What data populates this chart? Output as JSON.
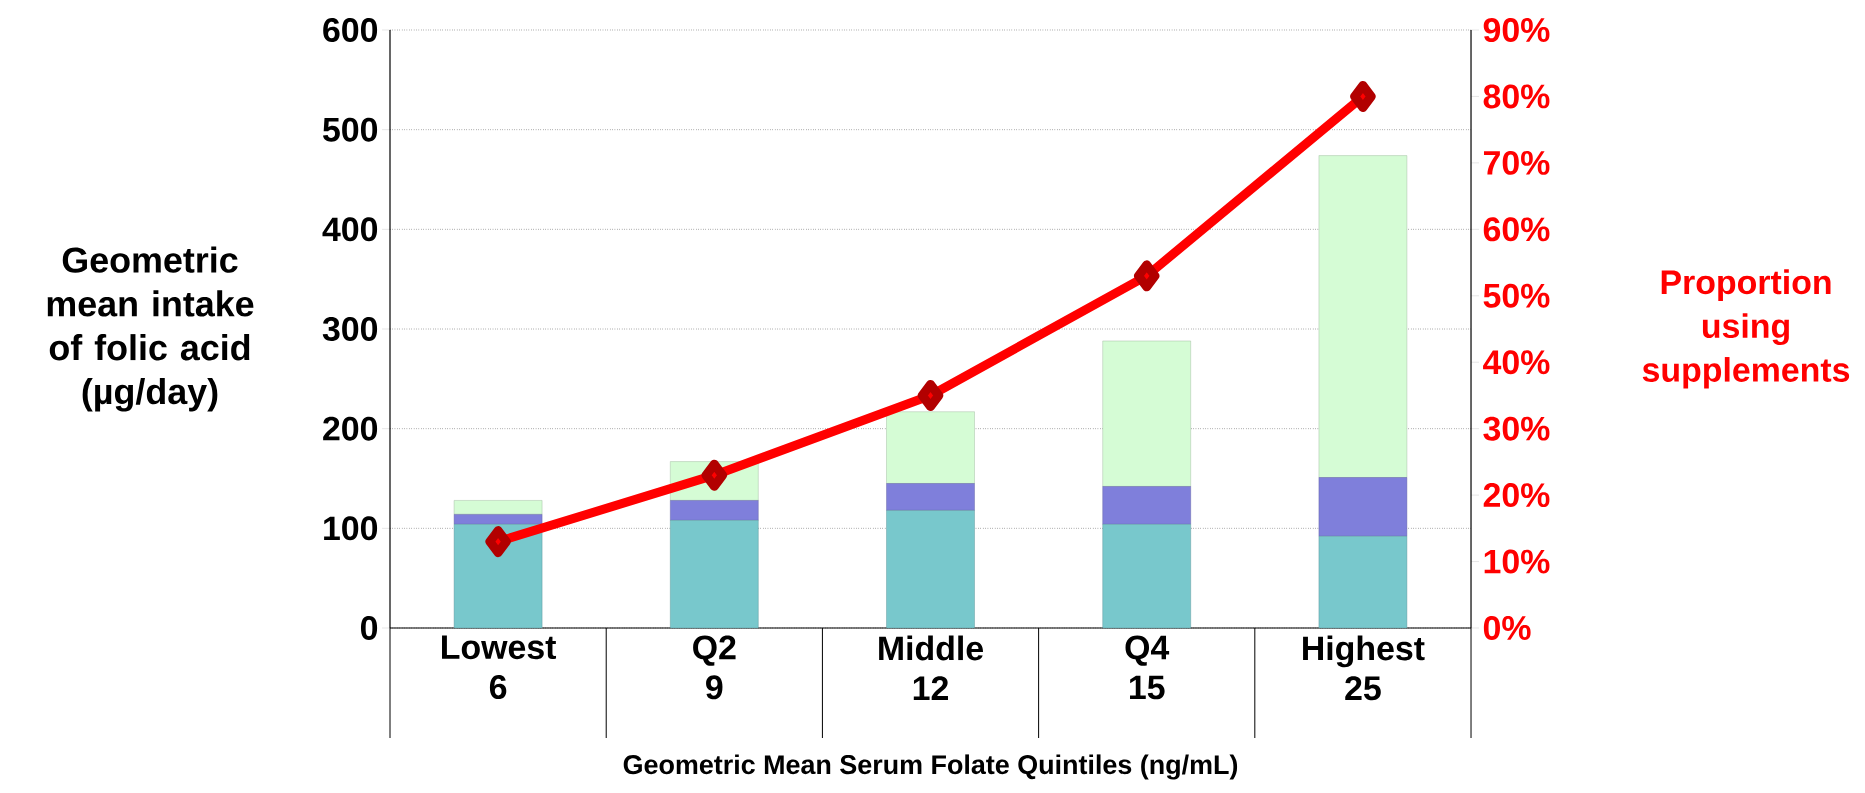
{
  "chart_data": {
    "type": "bar",
    "stacked": true,
    "xlabel": "Geometric Mean Serum Folate Quintiles (ng/mL)",
    "ylabel": "Geometric mean intake of folic acid (µg/day)",
    "y2label": "Proportion using supplements",
    "categories": [
      "Lowest 6",
      "Q2 9",
      "Middle 12",
      "Q4 15",
      "Highest 25"
    ],
    "ylim": [
      0,
      600
    ],
    "yticks": [
      0,
      100,
      200,
      300,
      400,
      500,
      600
    ],
    "y2lim": [
      0,
      90
    ],
    "y2ticks": [
      {
        "value": 0,
        "label": "0%"
      },
      {
        "value": 10,
        "label": "10%"
      },
      {
        "value": 20,
        "label": "20%"
      },
      {
        "value": 30,
        "label": "30%"
      },
      {
        "value": 40,
        "label": "40%"
      },
      {
        "value": 50,
        "label": "50%"
      },
      {
        "value": 60,
        "label": "60%"
      },
      {
        "value": 70,
        "label": "70%"
      },
      {
        "value": 80,
        "label": "80%"
      },
      {
        "value": 90,
        "label": "90%"
      }
    ],
    "grid": "y",
    "marker": "diamond",
    "series": [
      {
        "color": "#78c8cc",
        "values": [
          104,
          108,
          118,
          104,
          92
        ]
      },
      {
        "color": "#7f7fdb",
        "values": [
          10,
          20,
          27,
          38,
          59
        ]
      },
      {
        "color": "#d5fcd5",
        "values": [
          14,
          39,
          72,
          146,
          323
        ]
      },
      {
        "type": "line",
        "axis": "y2",
        "color": "#ff0000",
        "values": [
          13,
          23,
          35,
          53,
          80
        ]
      }
    ]
  }
}
